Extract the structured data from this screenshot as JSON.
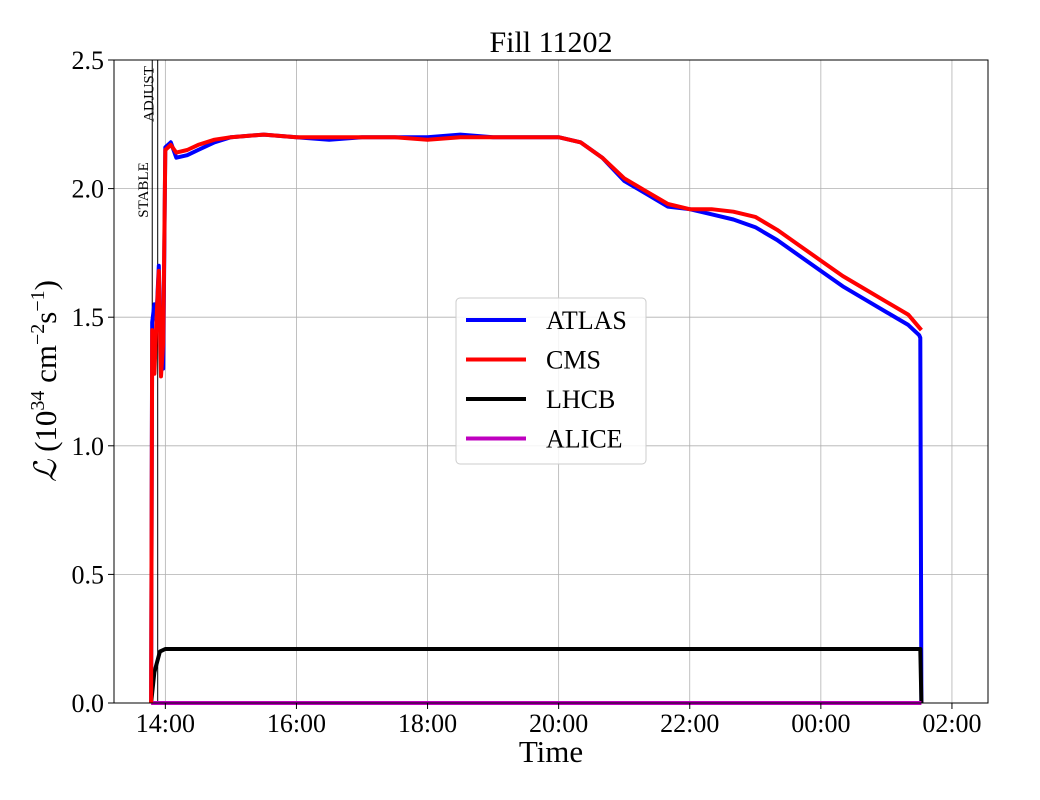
{
  "chart_data": {
    "type": "line",
    "title": "Fill 11202",
    "xlabel": "Time",
    "ylabel": "ℒ (10^34 cm^-2 s^-1)",
    "ylabel_parts": {
      "symbol": "ℒ",
      "open": " (10",
      "exp1": "34",
      "unit1": " cm",
      "exp2": "−2",
      "unit2": "s",
      "exp3": "−1",
      "close": ")"
    },
    "xlim": [
      "13:13",
      "02:33"
    ],
    "ylim": [
      0,
      2.5
    ],
    "xticks": [
      "14:00",
      "16:00",
      "18:00",
      "20:00",
      "22:00",
      "00:00",
      "02:00"
    ],
    "yticks": [
      "0.0",
      "0.5",
      "1.0",
      "1.5",
      "2.0",
      "2.5"
    ],
    "grid": true,
    "legend_position": "center",
    "annotations": [
      {
        "label": "ADJUST",
        "x": "13:53"
      },
      {
        "label": "STABLE",
        "x": "13:48"
      }
    ],
    "series": [
      {
        "name": "ATLAS",
        "color": "#0000ff",
        "x": [
          "13:47",
          "13:48",
          "13:50",
          "13:52",
          "13:54",
          "13:56",
          "13:58",
          "14:00",
          "14:05",
          "14:10",
          "14:20",
          "14:30",
          "14:45",
          "15:00",
          "15:30",
          "16:00",
          "16:30",
          "17:00",
          "17:30",
          "18:00",
          "18:30",
          "19:00",
          "19:30",
          "20:00",
          "20:20",
          "20:40",
          "21:00",
          "21:20",
          "21:40",
          "22:00",
          "22:20",
          "22:40",
          "23:00",
          "23:20",
          "23:40",
          "00:00",
          "00:20",
          "00:40",
          "01:00",
          "01:20",
          "01:30",
          "01:31",
          "01:32"
        ],
        "y": [
          0.0,
          1.48,
          1.55,
          1.51,
          1.7,
          1.35,
          1.3,
          2.16,
          2.18,
          2.12,
          2.13,
          2.15,
          2.18,
          2.2,
          2.21,
          2.2,
          2.19,
          2.2,
          2.2,
          2.2,
          2.21,
          2.2,
          2.2,
          2.2,
          2.18,
          2.12,
          2.03,
          1.98,
          1.93,
          1.92,
          1.9,
          1.88,
          1.85,
          1.8,
          1.74,
          1.68,
          1.62,
          1.57,
          1.52,
          1.47,
          1.43,
          1.42,
          0.0
        ]
      },
      {
        "name": "CMS",
        "color": "#ff0000",
        "x": [
          "13:47",
          "13:48",
          "13:50",
          "13:52",
          "13:54",
          "13:56",
          "13:58",
          "14:00",
          "14:05",
          "14:10",
          "14:20",
          "14:30",
          "14:45",
          "15:00",
          "15:30",
          "16:00",
          "16:30",
          "17:00",
          "17:30",
          "18:00",
          "18:30",
          "19:00",
          "19:30",
          "20:00",
          "20:20",
          "20:40",
          "21:00",
          "21:20",
          "21:40",
          "22:00",
          "22:20",
          "22:40",
          "23:00",
          "23:20",
          "23:40",
          "00:00",
          "00:20",
          "00:40",
          "01:00",
          "01:20",
          "01:32"
        ],
        "y": [
          0.0,
          1.45,
          1.28,
          1.5,
          1.68,
          1.27,
          1.4,
          2.15,
          2.17,
          2.14,
          2.15,
          2.17,
          2.19,
          2.2,
          2.21,
          2.2,
          2.2,
          2.2,
          2.2,
          2.19,
          2.2,
          2.2,
          2.2,
          2.2,
          2.18,
          2.12,
          2.04,
          1.99,
          1.94,
          1.92,
          1.92,
          1.91,
          1.89,
          1.84,
          1.78,
          1.72,
          1.66,
          1.61,
          1.56,
          1.51,
          1.45
        ]
      },
      {
        "name": "LHCB",
        "color": "#000000",
        "x": [
          "13:47",
          "13:50",
          "13:55",
          "14:00",
          "14:30",
          "15:00",
          "16:00",
          "17:00",
          "18:00",
          "19:00",
          "20:00",
          "21:00",
          "22:00",
          "23:00",
          "00:00",
          "01:00",
          "01:31",
          "01:32"
        ],
        "y": [
          0.0,
          0.12,
          0.2,
          0.21,
          0.21,
          0.21,
          0.21,
          0.21,
          0.21,
          0.21,
          0.21,
          0.21,
          0.21,
          0.21,
          0.21,
          0.21,
          0.21,
          0.0
        ]
      },
      {
        "name": "ALICE",
        "color": "#bf00bf",
        "x": [
          "13:47",
          "01:32"
        ],
        "y": [
          0.0,
          0.0
        ]
      }
    ]
  }
}
